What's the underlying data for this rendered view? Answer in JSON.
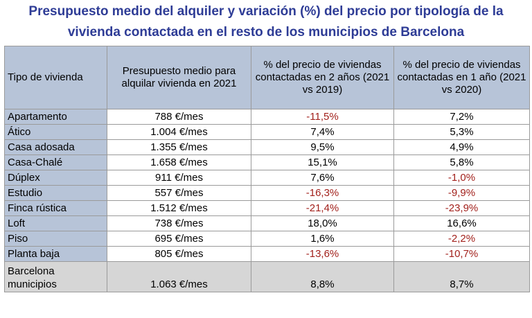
{
  "title": {
    "line1": "Presupuesto medio del alquiler y variación (%) del precio por tipología de la",
    "line2": "vivienda contactada en el resto de los municipios de Barcelona"
  },
  "table": {
    "headers": [
      "Tipo de vivienda",
      "Presupuesto medio para alquilar vivienda en 2021",
      "% del precio de viviendas contactadas en 2 años (2021 vs 2019)",
      "% del precio de viviendas contactadas en 1 año (2021 vs 2020)"
    ],
    "rows": [
      {
        "tipo": "Apartamento",
        "presupuesto": "788 €/mes",
        "var2": "-11,5%",
        "var1": "7,2%"
      },
      {
        "tipo": "Ático",
        "presupuesto": "1.004 €/mes",
        "var2": "7,4%",
        "var1": "5,3%"
      },
      {
        "tipo": "Casa adosada",
        "presupuesto": "1.355 €/mes",
        "var2": "9,5%",
        "var1": "4,9%"
      },
      {
        "tipo": "Casa-Chalé",
        "presupuesto": "1.658 €/mes",
        "var2": "15,1%",
        "var1": "5,8%"
      },
      {
        "tipo": "Dúplex",
        "presupuesto": "911 €/mes",
        "var2": "7,6%",
        "var1": "-1,0%"
      },
      {
        "tipo": "Estudio",
        "presupuesto": "557 €/mes",
        "var2": "-16,3%",
        "var1": "-9,9%"
      },
      {
        "tipo": "Finca rústica",
        "presupuesto": "1.512 €/mes",
        "var2": "-21,4%",
        "var1": "-23,9%"
      },
      {
        "tipo": "Loft",
        "presupuesto": "738 €/mes",
        "var2": "18,0%",
        "var1": "16,6%"
      },
      {
        "tipo": "Piso",
        "presupuesto": "695 €/mes",
        "var2": "1,6%",
        "var1": "-2,2%"
      },
      {
        "tipo": "Planta baja",
        "presupuesto": "805 €/mes",
        "var2": "-13,6%",
        "var1": "-10,7%"
      }
    ],
    "total": {
      "tipo_line1": "Barcelona",
      "tipo_line2": "municipios",
      "presupuesto": "1.063 €/mes",
      "var2": "8,8%",
      "var1": "8,7%"
    }
  },
  "colors": {
    "title": "#2e3c96",
    "header_bg": "#b7c4d8",
    "negative": "#a2211c",
    "total_bg": "#d6d6d6"
  }
}
